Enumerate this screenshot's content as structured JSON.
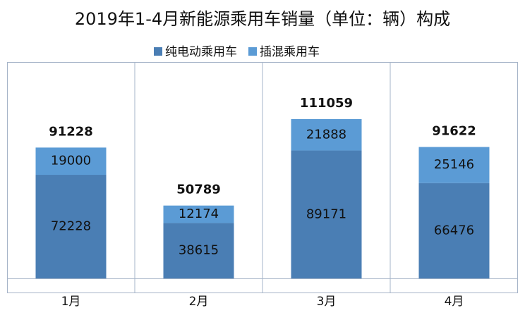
{
  "chart_data": {
    "type": "stacked-bar",
    "title": "2019年1-4月新能源乘用车销量（单位：辆）构成",
    "categories": [
      "1月",
      "2月",
      "3月",
      "4月"
    ],
    "series": [
      {
        "name": "纯电动乘用车",
        "color": "#4a7eb4",
        "values": [
          72228,
          38615,
          89171,
          66476
        ]
      },
      {
        "name": "插混乘用车",
        "color": "#5b9bd5",
        "values": [
          19000,
          12174,
          21888,
          25146
        ]
      }
    ],
    "totals": [
      91228,
      50789,
      111059,
      91622
    ],
    "legend": "top"
  }
}
